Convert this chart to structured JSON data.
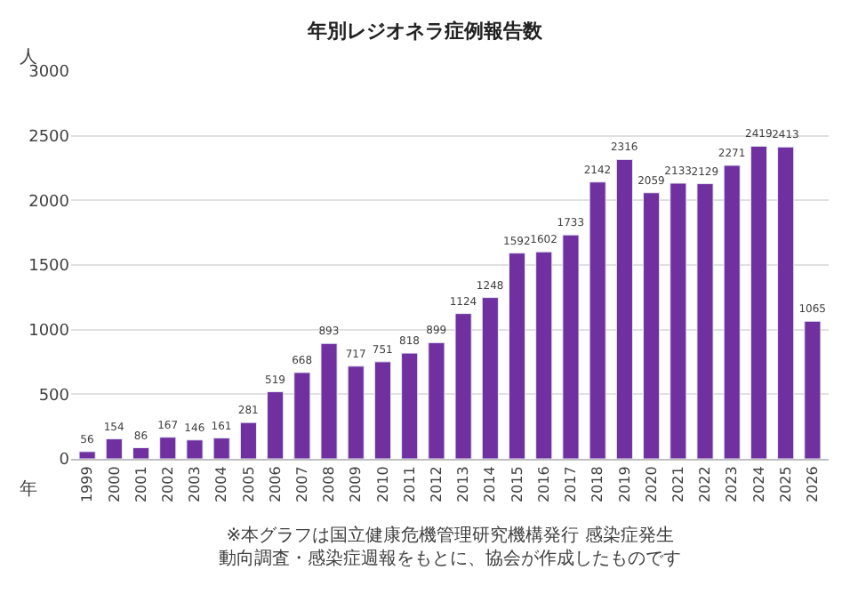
{
  "chart_data": {
    "type": "bar",
    "title": "年別レジオネラ症例報告数",
    "ylabel": "人",
    "xlabel": "年",
    "categories": [
      "1999",
      "2000",
      "2001",
      "2002",
      "2003",
      "2004",
      "2005",
      "2006",
      "2007",
      "2008",
      "2009",
      "2010",
      "2011",
      "2012",
      "2013",
      "2014",
      "2015",
      "2016",
      "2017",
      "2018",
      "2019",
      "2020",
      "2021",
      "2022",
      "2023",
      "2024",
      "2025",
      "2026"
    ],
    "values": [
      56,
      154,
      86,
      167,
      146,
      161,
      281,
      519,
      668,
      893,
      717,
      751,
      818,
      899,
      1124,
      1248,
      1592,
      1602,
      1733,
      2142,
      2316,
      2059,
      2133,
      2129,
      2271,
      2419,
      2413,
      1065
    ],
    "color": "#7030a0",
    "data_labels": true,
    "ylim": [
      0,
      3000
    ],
    "yticks": [
      0,
      500,
      1000,
      1500,
      2000,
      2500,
      3000
    ],
    "grid": "y",
    "annotations": [
      "※本グラフは国立健康危機管理研究機構発行 感染症発生動向調査・感染症週報をもとに、協会が作成したものです"
    ]
  }
}
